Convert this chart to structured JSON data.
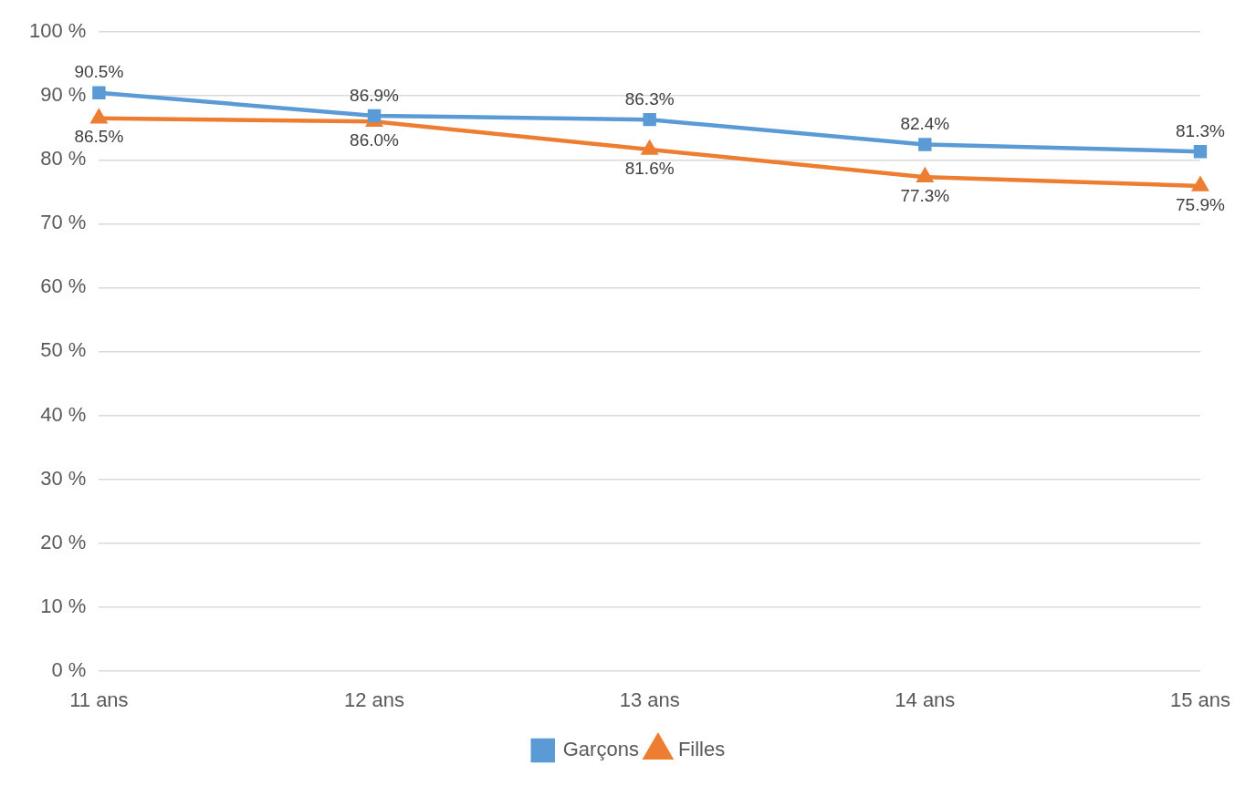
{
  "chart_data": {
    "type": "line",
    "categories": [
      "11 ans",
      "12 ans",
      "13 ans",
      "14 ans",
      "15 ans"
    ],
    "series": [
      {
        "name": "Garçons",
        "color": "#5b9bd5",
        "marker": "square",
        "values": [
          90.5,
          86.9,
          86.3,
          82.4,
          81.3
        ],
        "value_labels": [
          "90.5%",
          "86.9%",
          "86.3%",
          "82.4%",
          "81.3%"
        ]
      },
      {
        "name": "Filles",
        "color": "#ed7d31",
        "marker": "triangle",
        "values": [
          86.5,
          86.0,
          81.6,
          77.3,
          75.9
        ],
        "value_labels": [
          "86.5%",
          "86.0%",
          "81.6%",
          "77.3%",
          "75.9%"
        ]
      }
    ],
    "ylim": [
      0,
      100
    ],
    "yticks": [
      {
        "value": 0,
        "label": "0 %"
      },
      {
        "value": 10,
        "label": "10 %"
      },
      {
        "value": 20,
        "label": "20 %"
      },
      {
        "value": 30,
        "label": "30 %"
      },
      {
        "value": 40,
        "label": "40 %"
      },
      {
        "value": 50,
        "label": "50 %"
      },
      {
        "value": 60,
        "label": "60 %"
      },
      {
        "value": 70,
        "label": "70 %"
      },
      {
        "value": 80,
        "label": "80 %"
      },
      {
        "value": 90,
        "label": "90 %"
      },
      {
        "value": 100,
        "label": "100 %"
      }
    ],
    "grid": "y",
    "legend": "bottom"
  }
}
